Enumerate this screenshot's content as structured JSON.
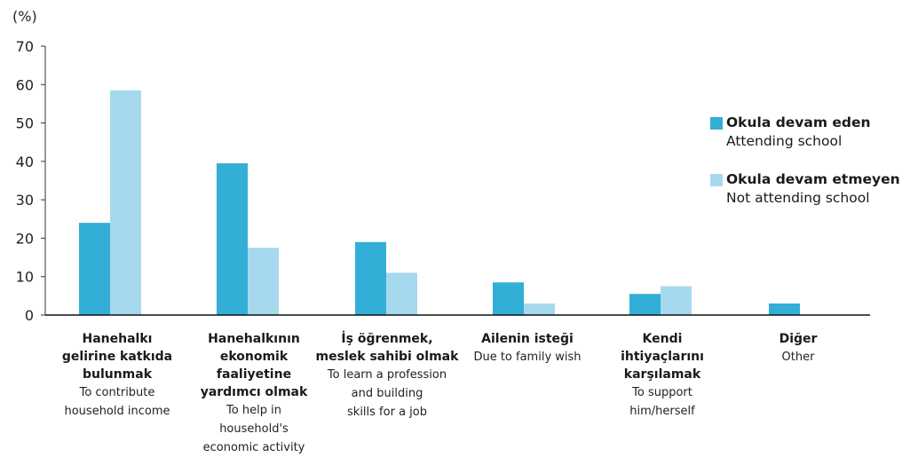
{
  "chart_data": {
    "type": "bar",
    "unit_label": "(%)",
    "ylim": [
      0,
      70
    ],
    "yticks": [
      0,
      10,
      20,
      30,
      40,
      50,
      60,
      70
    ],
    "grid": false,
    "legend_position": "right",
    "categories": [
      {
        "tr": "Hanehalkı\ngelirine katkıda\nbulunmak",
        "en": "To contribute\nhousehold income"
      },
      {
        "tr": "Hanehalkının\nekonomik\nfaaliyetine\nyardımcı olmak",
        "en": "To help in\nhousehold's\neconomic activity"
      },
      {
        "tr": "İş öğrenmek,\nmeslek sahibi olmak",
        "en": "To learn a profession\nand building\nskills for a job"
      },
      {
        "tr": "Ailenin isteği",
        "en": "Due to family wish"
      },
      {
        "tr": "Kendi\nihtiyaçlarını\nkarşılamak",
        "en": "To support\nhim/herself"
      },
      {
        "tr": "Diğer",
        "en": "Other"
      }
    ],
    "series": [
      {
        "name": "Okula devam eden",
        "name_en": "Attending school",
        "color": "#33aed6",
        "values": [
          24,
          39.5,
          19,
          8.5,
          5.5,
          3
        ]
      },
      {
        "name": "Okula devam etmeyen",
        "name_en": "Not attending school",
        "color": "#a6d9ee",
        "values": [
          58.5,
          17.5,
          11,
          3,
          7.5,
          0
        ]
      }
    ]
  }
}
